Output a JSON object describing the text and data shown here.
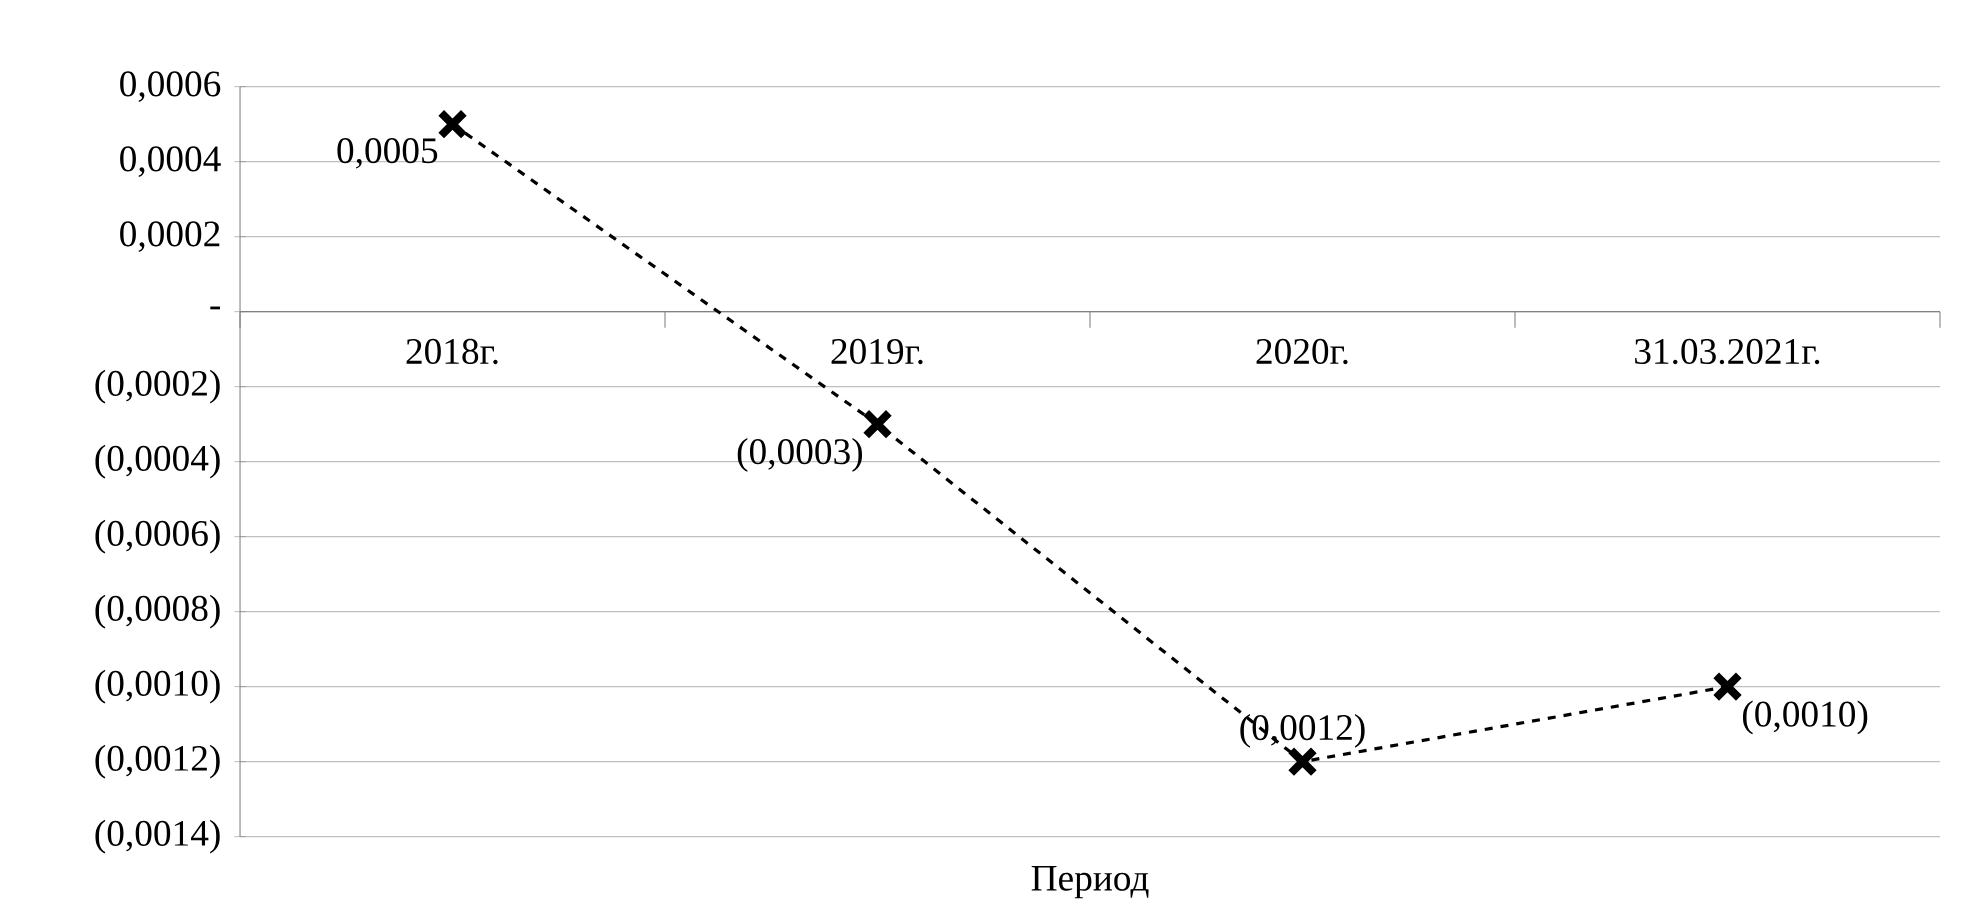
{
  "chart_data": {
    "type": "line",
    "xlabel": "Период",
    "categories": [
      "2018г.",
      "2019г.",
      "2020г.",
      "31.03.2021г."
    ],
    "series": [
      {
        "color": "#000000",
        "values": [
          0.0005,
          -0.0003,
          -0.0012,
          -0.001
        ],
        "value_labels": [
          "0,0005",
          "(0,0003)",
          "(0,0012)",
          "(0,0010)"
        ]
      }
    ],
    "ylim": [
      -0.0014,
      0.0006
    ],
    "yticks": [
      {
        "value": 0.0006,
        "label": "0,0006"
      },
      {
        "value": 0.0004,
        "label": "0,0004"
      },
      {
        "value": 0.0002,
        "label": "0,0002"
      },
      {
        "value": 0,
        "label": "-"
      },
      {
        "value": -0.0002,
        "label": "(0,0002)"
      },
      {
        "value": -0.0004,
        "label": "(0,0004)"
      },
      {
        "value": -0.0006,
        "label": "(0,0006)"
      },
      {
        "value": -0.0008,
        "label": "(0,0008)"
      },
      {
        "value": -0.001,
        "label": "(0,0010)"
      },
      {
        "value": -0.0012,
        "label": "(0,0012)"
      },
      {
        "value": -0.0014,
        "label": "(0,0014)"
      }
    ],
    "grid": "y",
    "marker": "cross",
    "line_style": "dashed"
  }
}
